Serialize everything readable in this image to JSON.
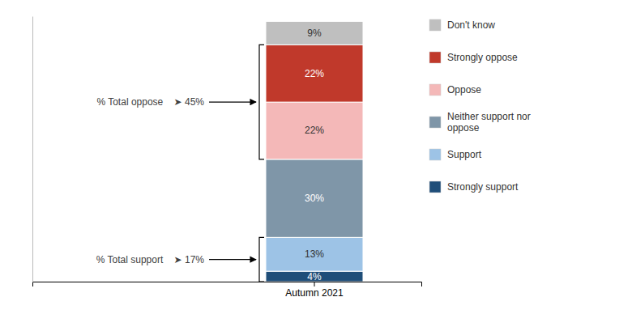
{
  "chart_data": {
    "type": "bar",
    "stacked": true,
    "categories": [
      "Autumn 2021"
    ],
    "series": [
      {
        "name": "Strongly support",
        "color": "#1f4e79",
        "values": [
          4
        ],
        "value_labels": [
          "4%"
        ]
      },
      {
        "name": "Support",
        "color": "#9dc3e6",
        "values": [
          13
        ],
        "value_labels": [
          "13%"
        ]
      },
      {
        "name": "Neither support nor\noppose",
        "color": "#7f96a8",
        "values": [
          30
        ],
        "value_labels": [
          "30%"
        ]
      },
      {
        "name": "Oppose",
        "color": "#f4b8b8",
        "values": [
          22
        ],
        "value_labels": [
          "22%"
        ]
      },
      {
        "name": "Strongly oppose",
        "color": "#c0392b",
        "values": [
          22
        ],
        "value_labels": [
          "22%"
        ]
      },
      {
        "name": "Don't know",
        "color": "#bfbfbf",
        "values": [
          9
        ],
        "value_labels": [
          "9%"
        ]
      }
    ],
    "annotations": [
      {
        "text": "% Total oppose    ➤ 45%",
        "series": [
          "Oppose",
          "Strongly oppose"
        ]
      },
      {
        "text": "% Total support    ➤ 17%",
        "series": [
          "Strongly support",
          "Support"
        ]
      }
    ],
    "ylim": [
      0,
      102
    ],
    "yticks": [],
    "tick_labels": "x",
    "grid": false,
    "data_labels": true,
    "legend": "upper right"
  }
}
